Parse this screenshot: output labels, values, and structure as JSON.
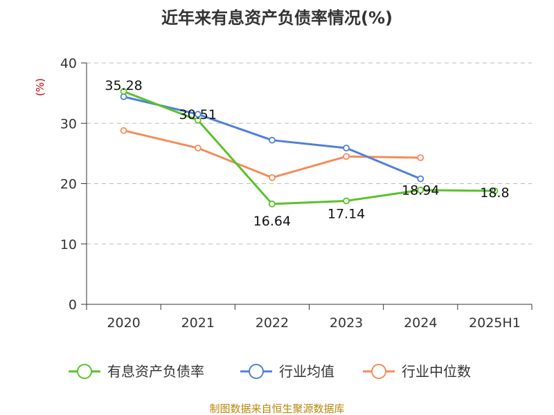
{
  "chart_data": {
    "type": "line",
    "title": "近年来有息资产负债率情况(%)",
    "ylabel": "(%)",
    "categories": [
      "2020",
      "2021",
      "2022",
      "2023",
      "2024",
      "2025H1"
    ],
    "ylim": [
      0,
      40
    ],
    "yticks": [
      "0",
      "10",
      "20",
      "30",
      "40"
    ],
    "grid": true,
    "legend_position": "bottom",
    "series": [
      {
        "name": "有息资产负债率",
        "color": "#5ac12b",
        "values": [
          35.28,
          30.51,
          16.64,
          17.14,
          18.94,
          18.8
        ],
        "labels": [
          "35.28",
          "30.51",
          "16.64",
          "17.14",
          "18.94",
          "18.8"
        ]
      },
      {
        "name": "行业均值",
        "color": "#4f80d8",
        "values": [
          34.4,
          31.5,
          27.2,
          25.9,
          20.8,
          null
        ]
      },
      {
        "name": "行业中位数",
        "color": "#f58b5a",
        "values": [
          28.8,
          25.9,
          21.0,
          24.5,
          24.3,
          null
        ]
      }
    ],
    "source": "制图数据来自恒生聚源数据库"
  }
}
